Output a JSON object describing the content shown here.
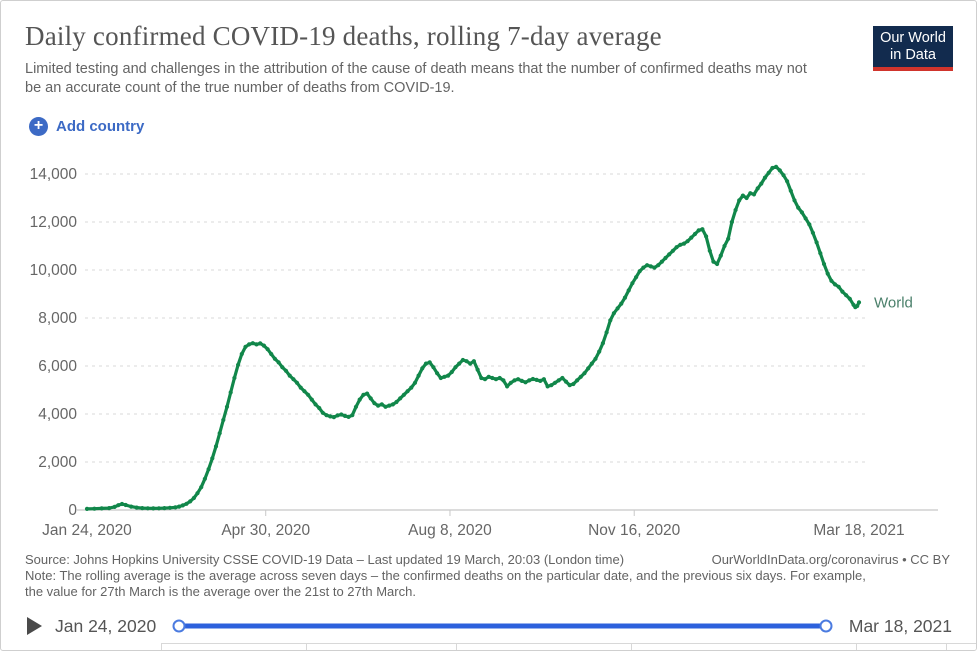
{
  "header": {
    "title": "Daily confirmed COVID-19 deaths, rolling 7-day average",
    "subtitle": "Limited testing and challenges in the attribution of the cause of death means that the number of confirmed deaths may not be an accurate count of the true number of deaths from COVID-19.",
    "logo": {
      "line1": "Our World",
      "line2": "in Data"
    }
  },
  "controls": {
    "add_country_label": "Add country",
    "plus_icon": "+"
  },
  "chart_data": {
    "type": "line",
    "title": "Daily confirmed COVID-19 deaths, rolling 7-day average",
    "xlabel": "",
    "ylabel": "",
    "ylim": [
      0,
      14000
    ],
    "x_range_days": [
      0,
      419
    ],
    "grid": "dashed-horizontal",
    "legend_position": "end-of-line-label",
    "y_ticks": [
      {
        "label": "0",
        "value": 0
      },
      {
        "label": "2,000",
        "value": 2000
      },
      {
        "label": "4,000",
        "value": 4000
      },
      {
        "label": "6,000",
        "value": 6000
      },
      {
        "label": "8,000",
        "value": 8000
      },
      {
        "label": "10,000",
        "value": 10000
      },
      {
        "label": "12,000",
        "value": 12000
      },
      {
        "label": "14,000",
        "value": 14000
      }
    ],
    "x_ticks": [
      {
        "label": "Jan 24, 2020",
        "day": 0
      },
      {
        "label": "Apr 30, 2020",
        "day": 97
      },
      {
        "label": "Aug 8, 2020",
        "day": 197
      },
      {
        "label": "Nov 16, 2020",
        "day": 297
      },
      {
        "label": "Mar 18, 2021",
        "day": 419
      }
    ],
    "series": [
      {
        "name": "World",
        "points": [
          [
            0,
            45
          ],
          [
            4,
            55
          ],
          [
            8,
            65
          ],
          [
            12,
            80
          ],
          [
            15,
            130
          ],
          [
            17,
            200
          ],
          [
            19,
            250
          ],
          [
            21,
            210
          ],
          [
            24,
            140
          ],
          [
            27,
            100
          ],
          [
            30,
            80
          ],
          [
            33,
            70
          ],
          [
            36,
            68
          ],
          [
            39,
            72
          ],
          [
            42,
            78
          ],
          [
            45,
            90
          ],
          [
            48,
            110
          ],
          [
            50,
            140
          ],
          [
            52,
            190
          ],
          [
            54,
            260
          ],
          [
            56,
            360
          ],
          [
            58,
            500
          ],
          [
            60,
            700
          ],
          [
            62,
            950
          ],
          [
            64,
            1300
          ],
          [
            66,
            1700
          ],
          [
            68,
            2150
          ],
          [
            70,
            2650
          ],
          [
            72,
            3200
          ],
          [
            74,
            3750
          ],
          [
            76,
            4300
          ],
          [
            78,
            4900
          ],
          [
            80,
            5500
          ],
          [
            82,
            6050
          ],
          [
            84,
            6500
          ],
          [
            86,
            6800
          ],
          [
            88,
            6900
          ],
          [
            90,
            6950
          ],
          [
            92,
            6900
          ],
          [
            94,
            6940
          ],
          [
            96,
            6850
          ],
          [
            98,
            6700
          ],
          [
            100,
            6500
          ],
          [
            102,
            6300
          ],
          [
            104,
            6150
          ],
          [
            106,
            5950
          ],
          [
            108,
            5800
          ],
          [
            110,
            5600
          ],
          [
            112,
            5450
          ],
          [
            114,
            5300
          ],
          [
            116,
            5100
          ],
          [
            118,
            4950
          ],
          [
            120,
            4800
          ],
          [
            122,
            4600
          ],
          [
            124,
            4400
          ],
          [
            126,
            4250
          ],
          [
            128,
            4050
          ],
          [
            130,
            3950
          ],
          [
            132,
            3900
          ],
          [
            134,
            3870
          ],
          [
            136,
            3940
          ],
          [
            138,
            3980
          ],
          [
            140,
            3920
          ],
          [
            142,
            3880
          ],
          [
            144,
            3950
          ],
          [
            146,
            4300
          ],
          [
            148,
            4600
          ],
          [
            150,
            4800
          ],
          [
            152,
            4850
          ],
          [
            154,
            4650
          ],
          [
            156,
            4450
          ],
          [
            158,
            4350
          ],
          [
            160,
            4400
          ],
          [
            162,
            4300
          ],
          [
            164,
            4350
          ],
          [
            166,
            4400
          ],
          [
            168,
            4500
          ],
          [
            170,
            4650
          ],
          [
            172,
            4800
          ],
          [
            174,
            4950
          ],
          [
            176,
            5100
          ],
          [
            178,
            5300
          ],
          [
            180,
            5600
          ],
          [
            182,
            5900
          ],
          [
            184,
            6100
          ],
          [
            186,
            6150
          ],
          [
            188,
            5950
          ],
          [
            190,
            5700
          ],
          [
            192,
            5500
          ],
          [
            194,
            5550
          ],
          [
            196,
            5600
          ],
          [
            198,
            5750
          ],
          [
            200,
            5950
          ],
          [
            202,
            6100
          ],
          [
            204,
            6250
          ],
          [
            206,
            6200
          ],
          [
            208,
            6100
          ],
          [
            210,
            6200
          ],
          [
            212,
            5850
          ],
          [
            214,
            5500
          ],
          [
            216,
            5450
          ],
          [
            218,
            5550
          ],
          [
            220,
            5500
          ],
          [
            222,
            5450
          ],
          [
            224,
            5500
          ],
          [
            226,
            5400
          ],
          [
            228,
            5150
          ],
          [
            230,
            5300
          ],
          [
            232,
            5400
          ],
          [
            234,
            5450
          ],
          [
            236,
            5380
          ],
          [
            238,
            5320
          ],
          [
            240,
            5400
          ],
          [
            242,
            5460
          ],
          [
            244,
            5420
          ],
          [
            246,
            5380
          ],
          [
            248,
            5450
          ],
          [
            250,
            5150
          ],
          [
            252,
            5200
          ],
          [
            254,
            5300
          ],
          [
            256,
            5400
          ],
          [
            258,
            5500
          ],
          [
            260,
            5350
          ],
          [
            262,
            5200
          ],
          [
            264,
            5250
          ],
          [
            266,
            5400
          ],
          [
            268,
            5550
          ],
          [
            270,
            5700
          ],
          [
            272,
            5900
          ],
          [
            274,
            6100
          ],
          [
            276,
            6300
          ],
          [
            278,
            6600
          ],
          [
            280,
            6950
          ],
          [
            282,
            7400
          ],
          [
            284,
            7900
          ],
          [
            286,
            8200
          ],
          [
            288,
            8400
          ],
          [
            290,
            8600
          ],
          [
            292,
            8850
          ],
          [
            294,
            9150
          ],
          [
            296,
            9450
          ],
          [
            298,
            9700
          ],
          [
            300,
            9950
          ],
          [
            302,
            10100
          ],
          [
            304,
            10200
          ],
          [
            306,
            10150
          ],
          [
            308,
            10100
          ],
          [
            310,
            10200
          ],
          [
            312,
            10350
          ],
          [
            314,
            10500
          ],
          [
            316,
            10650
          ],
          [
            318,
            10800
          ],
          [
            320,
            10950
          ],
          [
            322,
            11050
          ],
          [
            324,
            11100
          ],
          [
            326,
            11200
          ],
          [
            328,
            11350
          ],
          [
            330,
            11500
          ],
          [
            332,
            11650
          ],
          [
            334,
            11700
          ],
          [
            336,
            11400
          ],
          [
            338,
            10800
          ],
          [
            340,
            10350
          ],
          [
            342,
            10250
          ],
          [
            344,
            10600
          ],
          [
            346,
            11000
          ],
          [
            348,
            11300
          ],
          [
            350,
            12000
          ],
          [
            352,
            12500
          ],
          [
            354,
            12900
          ],
          [
            356,
            13100
          ],
          [
            358,
            13000
          ],
          [
            360,
            13200
          ],
          [
            362,
            13150
          ],
          [
            364,
            13400
          ],
          [
            366,
            13600
          ],
          [
            368,
            13850
          ],
          [
            370,
            14050
          ],
          [
            372,
            14250
          ],
          [
            374,
            14300
          ],
          [
            376,
            14150
          ],
          [
            378,
            13950
          ],
          [
            380,
            13700
          ],
          [
            382,
            13300
          ],
          [
            384,
            12900
          ],
          [
            386,
            12600
          ],
          [
            388,
            12400
          ],
          [
            390,
            12150
          ],
          [
            392,
            11900
          ],
          [
            394,
            11550
          ],
          [
            396,
            11150
          ],
          [
            398,
            10700
          ],
          [
            400,
            10250
          ],
          [
            402,
            9850
          ],
          [
            404,
            9550
          ],
          [
            406,
            9400
          ],
          [
            408,
            9300
          ],
          [
            410,
            9100
          ],
          [
            412,
            8950
          ],
          [
            414,
            8800
          ],
          [
            416,
            8550
          ],
          [
            417,
            8450
          ],
          [
            418,
            8500
          ],
          [
            419,
            8650
          ]
        ]
      }
    ]
  },
  "footer": {
    "source": "Source: Johns Hopkins University CSSE COVID-19 Data – Last updated 19 March, 20:03 (London time)",
    "attribution": "OurWorldInData.org/coronavirus • CC BY",
    "note": "Note: The rolling average is the average across seven days – the confirmed deaths on the particular date, and the previous six days. For example, the value for 27th March is the average over the 21st to 27th March."
  },
  "timeline": {
    "start_label": "Jan 24, 2020",
    "end_label": "Mar 18, 2021"
  },
  "colors": {
    "line": "#11874a",
    "entity_label": "#4b806b",
    "accent_blue": "#3c6ac5",
    "slider_blue": "#2d61dc",
    "logo_bg": "#122b4e",
    "logo_red": "#d0342c",
    "gridline": "#d9d9d9",
    "axis_line": "#c8c8c8",
    "axis_text": "#666666"
  }
}
